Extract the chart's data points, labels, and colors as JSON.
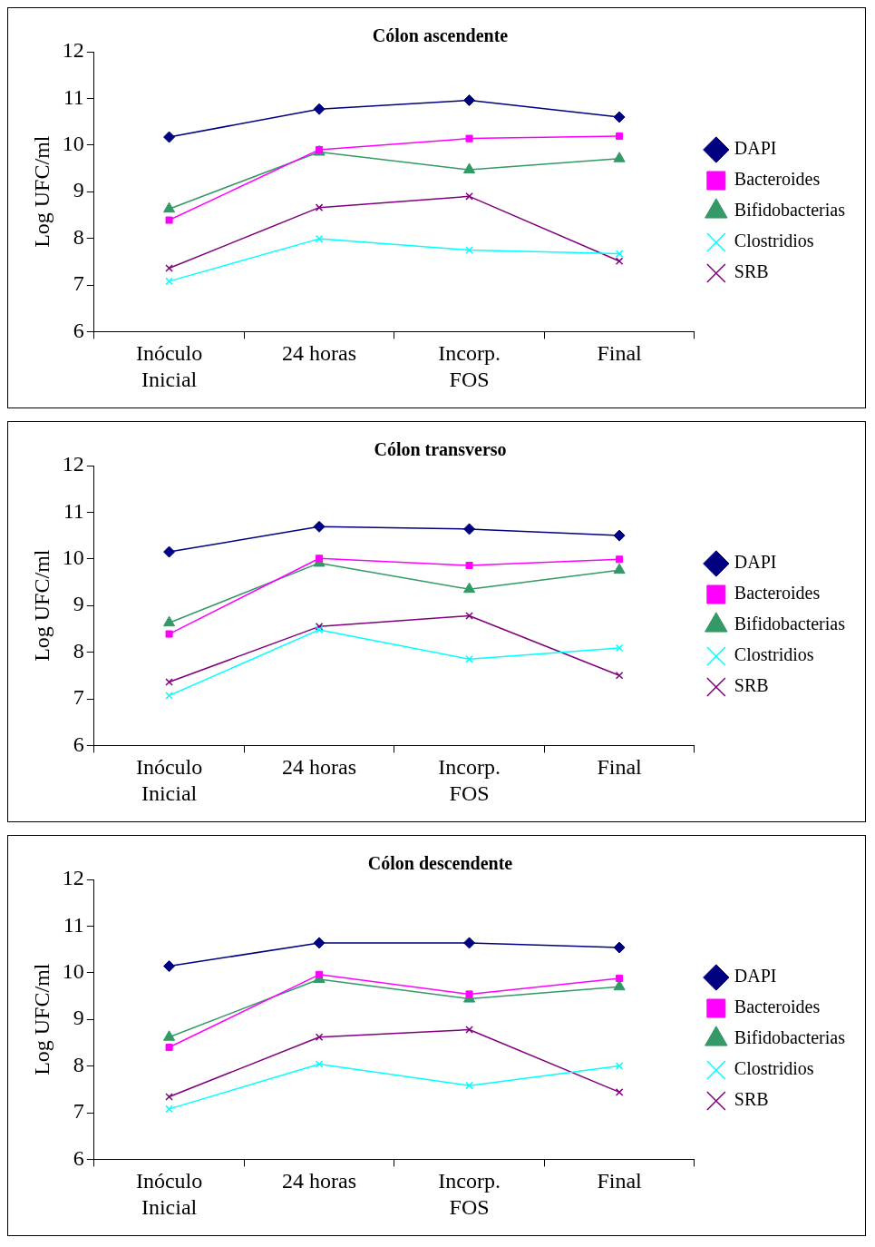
{
  "chart_data": [
    {
      "type": "line",
      "title": "Cólon ascendente",
      "ylabel": "Log UFC/ml",
      "categories": [
        "Inóculo\nInicial",
        "24 horas",
        "Incorp.\nFOS",
        "Final"
      ],
      "ylim": [
        6,
        12
      ],
      "yticks": [
        6,
        7,
        8,
        9,
        10,
        11,
        12
      ],
      "grid": false,
      "legend": "right",
      "series": [
        {
          "name": "DAPI",
          "color": "#000080",
          "marker": "diamond",
          "values": [
            10.17,
            10.77,
            10.96,
            10.6
          ]
        },
        {
          "name": "Bacteroides",
          "color": "#ff00ff",
          "marker": "square",
          "values": [
            8.39,
            9.9,
            10.14,
            10.19
          ]
        },
        {
          "name": "Bifidobacterias",
          "color": "#339966",
          "marker": "triangle",
          "values": [
            8.63,
            9.85,
            9.47,
            9.71
          ]
        },
        {
          "name": "Clostridios",
          "color": "#00ffff",
          "marker": "cross",
          "values": [
            7.08,
            7.99,
            7.75,
            7.67
          ]
        },
        {
          "name": "SRB",
          "color": "#800080",
          "marker": "cross",
          "values": [
            7.36,
            8.66,
            8.9,
            7.51
          ]
        }
      ]
    },
    {
      "type": "line",
      "title": "Cólon transverso",
      "ylabel": "Log UFC/ml",
      "categories": [
        "Inóculo\nInicial",
        "24 horas",
        "Incorp.\nFOS",
        "Final"
      ],
      "ylim": [
        6,
        12
      ],
      "yticks": [
        6,
        7,
        8,
        9,
        10,
        11,
        12
      ],
      "grid": false,
      "legend": "right",
      "series": [
        {
          "name": "DAPI",
          "color": "#000080",
          "marker": "diamond",
          "values": [
            10.15,
            10.69,
            10.64,
            10.5
          ]
        },
        {
          "name": "Bacteroides",
          "color": "#ff00ff",
          "marker": "square",
          "values": [
            8.39,
            10.01,
            9.86,
            9.99
          ]
        },
        {
          "name": "Bifidobacterias",
          "color": "#339966",
          "marker": "triangle",
          "values": [
            8.63,
            9.91,
            9.35,
            9.76
          ]
        },
        {
          "name": "Clostridios",
          "color": "#00ffff",
          "marker": "cross",
          "values": [
            7.07,
            8.48,
            7.85,
            8.09
          ]
        },
        {
          "name": "SRB",
          "color": "#800080",
          "marker": "cross",
          "values": [
            7.36,
            8.55,
            8.78,
            7.5
          ]
        }
      ]
    },
    {
      "type": "line",
      "title": "Cólon descendente",
      "ylabel": "Log UFC/ml",
      "categories": [
        "Inóculo\nInicial",
        "24 horas",
        "Incorp.\nFOS",
        "Final"
      ],
      "ylim": [
        6,
        12
      ],
      "yticks": [
        6,
        7,
        8,
        9,
        10,
        11,
        12
      ],
      "grid": false,
      "legend": "right",
      "series": [
        {
          "name": "DAPI",
          "color": "#000080",
          "marker": "diamond",
          "values": [
            10.14,
            10.64,
            10.64,
            10.54
          ]
        },
        {
          "name": "Bacteroides",
          "color": "#ff00ff",
          "marker": "square",
          "values": [
            8.4,
            9.96,
            9.54,
            9.88
          ]
        },
        {
          "name": "Bifidobacterias",
          "color": "#339966",
          "marker": "triangle",
          "values": [
            8.62,
            9.86,
            9.44,
            9.7
          ]
        },
        {
          "name": "Clostridios",
          "color": "#00ffff",
          "marker": "cross",
          "values": [
            7.08,
            8.04,
            7.58,
            8.0
          ]
        },
        {
          "name": "SRB",
          "color": "#800080",
          "marker": "cross",
          "values": [
            7.34,
            8.62,
            8.78,
            7.44
          ]
        }
      ]
    }
  ]
}
